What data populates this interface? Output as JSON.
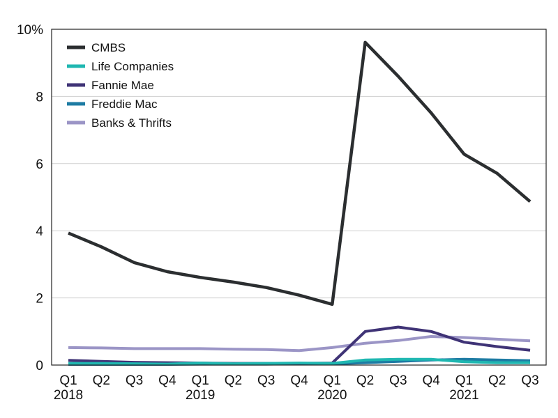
{
  "chart_data": {
    "type": "line",
    "title": "",
    "xlabel": "",
    "ylabel": "",
    "categories": [
      "Q1",
      "Q2",
      "Q3",
      "Q4",
      "Q1",
      "Q2",
      "Q3",
      "Q4",
      "Q1",
      "Q2",
      "Q3",
      "Q4",
      "Q1",
      "Q2",
      "Q3"
    ],
    "year_labels": [
      {
        "index": 0,
        "label": "2018"
      },
      {
        "index": 4,
        "label": "2019"
      },
      {
        "index": 8,
        "label": "2020"
      },
      {
        "index": 12,
        "label": "2021"
      }
    ],
    "y_ticks": [
      {
        "value": 0,
        "label": "0"
      },
      {
        "value": 2,
        "label": "2"
      },
      {
        "value": 4,
        "label": "4"
      },
      {
        "value": 6,
        "label": "6"
      },
      {
        "value": 8,
        "label": "8"
      },
      {
        "value": 10,
        "label": "10%"
      }
    ],
    "ylim": [
      0,
      10
    ],
    "grid": "horizontal",
    "legend_position": "top-left",
    "series": [
      {
        "name": "Banks & Thrifts",
        "color": "#9b95c6",
        "values": [
          0.52,
          0.51,
          0.49,
          0.49,
          0.49,
          0.47,
          0.46,
          0.43,
          0.52,
          0.65,
          0.73,
          0.85,
          0.82,
          0.77,
          0.72
        ]
      },
      {
        "name": "Freddie Mac",
        "color": "#1d7ba3",
        "values": [
          0.02,
          0.02,
          0.02,
          0.02,
          0.03,
          0.03,
          0.03,
          0.04,
          0.04,
          0.07,
          0.11,
          0.15,
          0.17,
          0.15,
          0.13
        ]
      },
      {
        "name": "Fannie Mae",
        "color": "#3f3376",
        "values": [
          0.14,
          0.11,
          0.08,
          0.07,
          0.06,
          0.05,
          0.05,
          0.05,
          0.06,
          1.0,
          1.13,
          1.0,
          0.68,
          0.55,
          0.44
        ]
      },
      {
        "name": "Life Companies",
        "color": "#1fb7b1",
        "values": [
          0.05,
          0.05,
          0.04,
          0.03,
          0.06,
          0.04,
          0.05,
          0.06,
          0.05,
          0.15,
          0.17,
          0.17,
          0.1,
          0.07,
          0.07
        ]
      },
      {
        "name": "CMBS",
        "color": "#2b2e30",
        "values": [
          3.93,
          3.52,
          3.05,
          2.78,
          2.61,
          2.47,
          2.31,
          2.08,
          1.81,
          9.61,
          8.6,
          7.51,
          6.28,
          5.71,
          4.87
        ]
      }
    ],
    "legend_order": [
      "CMBS",
      "Life Companies",
      "Fannie Mae",
      "Freddie Mac",
      "Banks & Thrifts"
    ]
  }
}
